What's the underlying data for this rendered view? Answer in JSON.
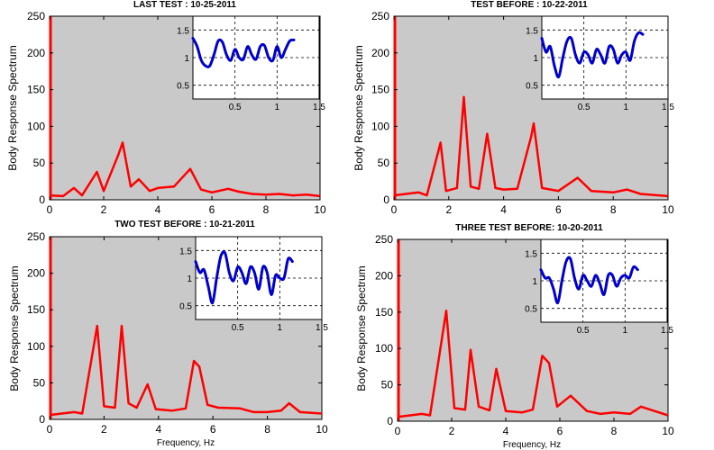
{
  "chart_data": [
    {
      "type": "line",
      "title": "LAST TEST : 10-25-2011",
      "xlabel": "",
      "ylabel": "Body Response Spectrum",
      "xlim": [
        0,
        10
      ],
      "ylim": [
        0,
        250
      ],
      "xticks": [
        "0",
        "2",
        "4",
        "6",
        "8",
        "10"
      ],
      "yticks": [
        "0",
        "50",
        "100",
        "150",
        "200",
        "250"
      ],
      "grid": false,
      "colors": {
        "line": "#ff0000",
        "plot_bg": "#c9c9c9"
      },
      "peaks": [
        [
          0.9,
          16
        ],
        [
          1.75,
          38
        ],
        [
          2.55,
          62
        ],
        [
          2.7,
          78
        ],
        [
          3.3,
          28
        ],
        [
          4.0,
          16
        ],
        [
          4.6,
          18
        ],
        [
          5.2,
          42
        ],
        [
          6.6,
          15
        ],
        [
          8.5,
          8
        ],
        [
          9.2,
          8
        ]
      ],
      "x": [
        0,
        0.5,
        0.9,
        1.2,
        1.75,
        2.0,
        2.55,
        2.7,
        3.0,
        3.3,
        3.7,
        4.0,
        4.6,
        5.2,
        5.6,
        6.0,
        6.6,
        7.0,
        7.5,
        8.0,
        8.5,
        9.0,
        9.5,
        10
      ],
      "y": [
        6,
        5,
        16,
        6,
        38,
        12,
        62,
        78,
        18,
        28,
        12,
        16,
        18,
        42,
        14,
        10,
        15,
        11,
        8,
        7,
        8,
        6,
        7,
        5
      ],
      "inset": {
        "type": "line",
        "xlim": [
          0,
          1.5
        ],
        "ylim": [
          0.25,
          1.75
        ],
        "xticks": [
          "0.5",
          "1",
          "1.5"
        ],
        "yticks": [
          "0.5",
          "1",
          "1.5"
        ],
        "grid": true,
        "colors": {
          "line": "#0000cc",
          "bg": "#ffffff"
        },
        "x": [
          0,
          0.05,
          0.1,
          0.15,
          0.2,
          0.25,
          0.3,
          0.35,
          0.4,
          0.45,
          0.5,
          0.55,
          0.6,
          0.65,
          0.7,
          0.75,
          0.8,
          0.85,
          0.9,
          0.95,
          1.0,
          1.05,
          1.1,
          1.15,
          1.2
        ],
        "y": [
          1.35,
          1.2,
          0.95,
          0.85,
          0.85,
          1.05,
          1.3,
          1.28,
          1.05,
          0.95,
          1.15,
          1.0,
          0.97,
          1.2,
          1.05,
          0.97,
          1.2,
          1.22,
          1.0,
          0.95,
          1.2,
          1.0,
          1.15,
          1.3,
          1.32
        ]
      }
    },
    {
      "type": "line",
      "title": "TEST BEFORE : 10-22-2011",
      "xlabel": "",
      "ylabel": "Body Response Spectrum",
      "xlim": [
        0,
        10
      ],
      "ylim": [
        0,
        250
      ],
      "xticks": [
        "0",
        "2",
        "4",
        "6",
        "8",
        "10"
      ],
      "yticks": [
        "0",
        "50",
        "100",
        "150",
        "200",
        "250"
      ],
      "grid": false,
      "colors": {
        "line": "#ff0000",
        "plot_bg": "#c9c9c9"
      },
      "x": [
        0,
        0.9,
        1.2,
        1.7,
        1.9,
        2.3,
        2.55,
        2.8,
        3.1,
        3.4,
        3.7,
        4.0,
        4.5,
        5.0,
        5.1,
        5.4,
        6.0,
        6.7,
        7.2,
        8.0,
        8.5,
        9.0,
        10
      ],
      "y": [
        6,
        10,
        6,
        78,
        12,
        16,
        140,
        18,
        15,
        90,
        16,
        14,
        15,
        85,
        104,
        16,
        12,
        30,
        12,
        10,
        14,
        8,
        5
      ],
      "inset": {
        "type": "line",
        "xlim": [
          0,
          1.5
        ],
        "ylim": [
          0.25,
          1.75
        ],
        "xticks": [
          "0.5",
          "1",
          "1.5"
        ],
        "yticks": [
          "0.5",
          "1",
          "1.5"
        ],
        "grid": true,
        "colors": {
          "line": "#0000cc",
          "bg": "#ffffff"
        },
        "x": [
          0,
          0.05,
          0.1,
          0.15,
          0.2,
          0.25,
          0.3,
          0.35,
          0.4,
          0.45,
          0.5,
          0.55,
          0.6,
          0.65,
          0.7,
          0.75,
          0.8,
          0.85,
          0.9,
          0.95,
          1.0,
          1.05,
          1.1,
          1.15,
          1.2
        ],
        "y": [
          1.35,
          1.1,
          1.2,
          0.85,
          0.65,
          1.0,
          1.3,
          1.35,
          1.05,
          0.9,
          1.1,
          1.05,
          0.9,
          1.15,
          1.05,
          0.9,
          1.2,
          1.15,
          0.9,
          1.05,
          1.1,
          0.95,
          1.3,
          1.45,
          1.42
        ]
      }
    },
    {
      "type": "line",
      "title": "TWO TEST BEFORE : 10-21-2011",
      "xlabel": "Frequency, Hz",
      "ylabel": "Body Response Spectrum",
      "xlim": [
        0,
        10
      ],
      "ylim": [
        0,
        250
      ],
      "xticks": [
        "0",
        "2",
        "4",
        "6",
        "8",
        "10"
      ],
      "yticks": [
        "0",
        "50",
        "100",
        "150",
        "200",
        "250"
      ],
      "grid": false,
      "colors": {
        "line": "#ff0000",
        "plot_bg": "#c9c9c9"
      },
      "x": [
        0,
        0.9,
        1.2,
        1.75,
        2.0,
        2.4,
        2.65,
        2.9,
        3.2,
        3.6,
        3.9,
        4.5,
        5.0,
        5.3,
        5.5,
        5.8,
        6.2,
        7.0,
        7.5,
        8.0,
        8.5,
        8.8,
        9.2,
        10
      ],
      "y": [
        6,
        10,
        8,
        128,
        18,
        16,
        128,
        22,
        16,
        48,
        14,
        12,
        15,
        80,
        72,
        20,
        16,
        15,
        10,
        10,
        12,
        22,
        10,
        8
      ],
      "inset": {
        "type": "line",
        "xlim": [
          0,
          1.5
        ],
        "ylim": [
          0.25,
          1.75
        ],
        "xticks": [
          "0.5",
          "1",
          "1.5"
        ],
        "yticks": [
          "0.5",
          "1",
          "1.5"
        ],
        "grid": true,
        "colors": {
          "line": "#0000cc",
          "bg": "#ffffff"
        },
        "x": [
          0,
          0.05,
          0.1,
          0.15,
          0.2,
          0.25,
          0.3,
          0.35,
          0.4,
          0.45,
          0.5,
          0.55,
          0.6,
          0.65,
          0.7,
          0.75,
          0.8,
          0.85,
          0.9,
          0.95,
          1.0,
          1.05,
          1.1,
          1.15
        ],
        "y": [
          1.3,
          1.1,
          1.15,
          0.85,
          0.55,
          1.0,
          1.4,
          1.45,
          1.1,
          0.95,
          1.2,
          1.1,
          0.9,
          1.2,
          1.1,
          0.8,
          1.2,
          1.1,
          0.7,
          1.05,
          1.0,
          1.0,
          1.35,
          1.3
        ]
      }
    },
    {
      "type": "line",
      "title": "THREE TEST BEFORE:   10-20-2011",
      "xlabel": "Frequency, Hz",
      "ylabel": "Body Response Spectrum",
      "xlim": [
        0,
        10
      ],
      "ylim": [
        0,
        250
      ],
      "xticks": [
        "0",
        "2",
        "4",
        "6",
        "8",
        "10"
      ],
      "yticks": [
        "0",
        "50",
        "100",
        "150",
        "200",
        "250"
      ],
      "grid": false,
      "colors": {
        "line": "#ff0000",
        "plot_bg": "#c9c9c9"
      },
      "x": [
        0,
        0.9,
        1.2,
        1.8,
        2.1,
        2.5,
        2.7,
        3.0,
        3.4,
        3.65,
        4.0,
        4.6,
        5.0,
        5.35,
        5.6,
        5.9,
        6.4,
        7.0,
        7.5,
        8.0,
        8.6,
        9.0,
        9.5,
        10
      ],
      "y": [
        6,
        10,
        8,
        152,
        18,
        16,
        98,
        20,
        15,
        72,
        14,
        12,
        16,
        90,
        80,
        20,
        35,
        14,
        10,
        12,
        10,
        20,
        14,
        8
      ],
      "inset": {
        "type": "line",
        "xlim": [
          0,
          1.5
        ],
        "ylim": [
          0.25,
          1.75
        ],
        "xticks": [
          "0.5",
          "1",
          "1.5"
        ],
        "yticks": [
          "0.5",
          "1",
          "1.5"
        ],
        "grid": true,
        "colors": {
          "line": "#0000cc",
          "bg": "#ffffff"
        },
        "x": [
          0,
          0.05,
          0.1,
          0.15,
          0.2,
          0.25,
          0.3,
          0.35,
          0.4,
          0.45,
          0.5,
          0.55,
          0.6,
          0.65,
          0.7,
          0.75,
          0.8,
          0.85,
          0.9,
          0.95,
          1.0,
          1.05,
          1.1,
          1.15
        ],
        "y": [
          1.2,
          1.05,
          1.05,
          0.85,
          0.6,
          1.0,
          1.35,
          1.4,
          1.05,
          0.85,
          1.1,
          1.0,
          0.9,
          1.1,
          0.95,
          0.75,
          1.1,
          1.1,
          0.9,
          1.05,
          1.1,
          1.05,
          1.25,
          1.2
        ]
      }
    }
  ]
}
